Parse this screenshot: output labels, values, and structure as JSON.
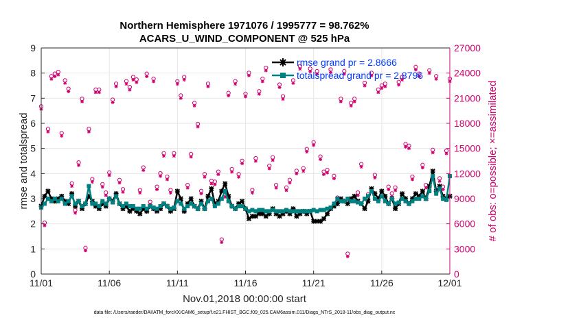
{
  "chart_data": {
    "type": "line",
    "title": [
      "Northern Hemisphere 1971076 / 1995777 = 98.762%",
      "ACARS_U_WIND_COMPONENT @ 525 hPa"
    ],
    "xlabel": "Nov.01,2018 00:00:00 start",
    "ylabel_left": "rmse and totalspread",
    "ylabel_right": "# of obs: o=possible; ×=assimilated",
    "ylim_left": [
      0,
      9
    ],
    "ylim_right": [
      0,
      27000
    ],
    "xlim_days": [
      0,
      30
    ],
    "x_ticks": [
      {
        "day": 0,
        "label": "11/01"
      },
      {
        "day": 5,
        "label": "11/06"
      },
      {
        "day": 10,
        "label": "11/11"
      },
      {
        "day": 15,
        "label": "11/16"
      },
      {
        "day": 20,
        "label": "11/21"
      },
      {
        "day": 25,
        "label": "11/26"
      },
      {
        "day": 30,
        "label": "12/01"
      }
    ],
    "y_ticks_left": [
      0,
      1,
      2,
      3,
      4,
      5,
      6,
      7,
      8,
      9
    ],
    "y_ticks_right": [
      "0",
      "3000",
      "6000",
      "9000",
      "12000",
      "15000",
      "18000",
      "21000",
      "24000",
      "27000"
    ],
    "legend": [
      "rmse grand pr = 2.8666",
      "totalspread grand pr = 2.8796"
    ],
    "footnote": "data file: /Users/raeder/DAI/ATM_forcXX/CAM6_setup/f.e21.FHIST_BGC.f09_025.CAM6assim.011/Diags_NTrS_2018-11/obs_diag_output.nc",
    "colors": {
      "rmse": "#000000",
      "spread": "#008080",
      "obs": "#d0006f",
      "axes_right": "#d0006f",
      "legend_text": "#0039ff"
    },
    "series": [
      {
        "name": "rmse",
        "values": [
          2.7,
          3.1,
          3.3,
          3.0,
          2.9,
          3.0,
          3.1,
          2.9,
          2.8,
          3.2,
          2.7,
          2.9,
          2.6,
          2.8,
          3.1,
          2.9,
          2.7,
          2.6,
          2.8,
          2.7,
          3.0,
          2.9,
          3.2,
          2.8,
          2.6,
          2.7,
          2.5,
          2.6,
          2.5,
          2.4,
          2.6,
          2.5,
          2.7,
          2.6,
          2.5,
          2.6,
          2.8,
          2.7,
          2.5,
          2.6,
          3.3,
          3.0,
          2.5,
          2.8,
          3.0,
          2.7,
          2.6,
          2.9,
          2.6,
          3.1,
          3.4,
          2.8,
          2.9,
          3.3,
          3.6,
          3.1,
          2.7,
          2.6,
          2.8,
          2.9,
          2.6,
          2.2,
          2.3,
          2.3,
          2.4,
          2.4,
          2.3,
          2.4,
          2.6,
          2.4,
          2.3,
          2.4,
          2.5,
          2.4,
          2.6,
          2.3,
          2.4,
          2.5,
          2.4,
          2.5,
          2.1,
          2.1,
          2.1,
          2.2,
          2.4,
          2.6,
          2.7,
          2.8,
          3.0,
          2.9,
          2.8,
          3.0,
          3.1,
          2.9,
          2.8,
          2.6,
          2.9,
          3.4,
          3.2,
          3.0,
          3.3,
          3.1,
          2.8,
          3.0,
          2.6,
          2.8,
          3.2,
          3.0,
          2.8,
          3.0,
          3.2,
          3.1,
          3.3,
          3.0,
          3.5,
          4.1,
          3.3,
          3.5,
          3.1,
          3.0,
          3.1
        ]
      },
      {
        "name": "totalspread",
        "values": [
          2.65,
          2.8,
          3.0,
          2.9,
          3.0,
          2.9,
          3.0,
          2.8,
          2.9,
          3.1,
          2.8,
          2.9,
          2.7,
          2.8,
          3.5,
          2.8,
          2.8,
          2.7,
          2.9,
          2.8,
          3.0,
          2.85,
          3.1,
          2.8,
          2.7,
          2.8,
          2.7,
          2.7,
          2.6,
          2.6,
          2.7,
          2.6,
          2.7,
          2.65,
          2.6,
          2.7,
          2.8,
          2.7,
          2.6,
          2.65,
          2.9,
          2.8,
          2.6,
          2.7,
          2.8,
          2.7,
          2.6,
          2.8,
          2.6,
          2.9,
          3.0,
          2.7,
          2.8,
          3.0,
          3.3,
          2.9,
          2.7,
          2.6,
          2.7,
          2.7,
          2.6,
          2.5,
          2.55,
          2.5,
          2.55,
          2.55,
          2.5,
          2.5,
          2.55,
          2.5,
          2.5,
          2.5,
          2.55,
          2.5,
          2.5,
          2.5,
          2.5,
          2.5,
          2.5,
          2.5,
          2.55,
          2.5,
          2.55,
          2.55,
          2.6,
          2.65,
          2.8,
          3.0,
          2.9,
          2.9,
          3.0,
          2.9,
          2.9,
          2.85,
          2.8,
          3.0,
          3.1,
          3.3,
          3.0,
          2.9,
          3.1,
          2.9,
          2.8,
          3.0,
          2.8,
          2.85,
          3.0,
          2.9,
          2.8,
          2.9,
          3.0,
          3.0,
          3.1,
          3.0,
          3.3,
          3.9,
          3.2,
          3.4,
          3.0,
          2.95,
          3.9
        ]
      },
      {
        "name": "obs_possible",
        "values": [
          19700,
          5800,
          17000,
          23300,
          23600,
          23800,
          16500,
          22800,
          21800,
          10500,
          7300,
          13000,
          20600,
          2800,
          17000,
          11000,
          21700,
          21700,
          10400,
          9400,
          11800,
          20500,
          22400,
          10900,
          9800,
          22700,
          22000,
          23200,
          22900,
          9700,
          12400,
          23600,
          8300,
          23000,
          10100,
          11700,
          14100,
          11300,
          9700,
          14100,
          22700,
          21000,
          23200,
          10300,
          14000,
          20100,
          17600,
          9600,
          11600,
          22400,
          10800,
          10700,
          11900,
          3800,
          9200,
          21300,
          12200,
          22700,
          11600,
          13200,
          21200,
          23700,
          9700,
          13500,
          21500,
          23000,
          24300,
          12600,
          13600,
          10300,
          22300,
          20900,
          10000,
          10900,
          22800,
          12000,
          24500,
          12300,
          14600,
          24200,
          15400,
          23900,
          13700,
          11900,
          12100,
          24100,
          11400,
          8800,
          20600,
          23900,
          2100,
          20100,
          20600,
          9400,
          12800,
          22500,
          9200,
          23700,
          11500,
          21700,
          22200,
          22400,
          10100,
          9300,
          10000,
          22600,
          23200,
          15200,
          15000,
          11300,
          24400,
          23600,
          12700,
          10300,
          24000,
          14500,
          23300,
          11100,
          10100,
          14400,
          23000
        ]
      }
    ]
  }
}
